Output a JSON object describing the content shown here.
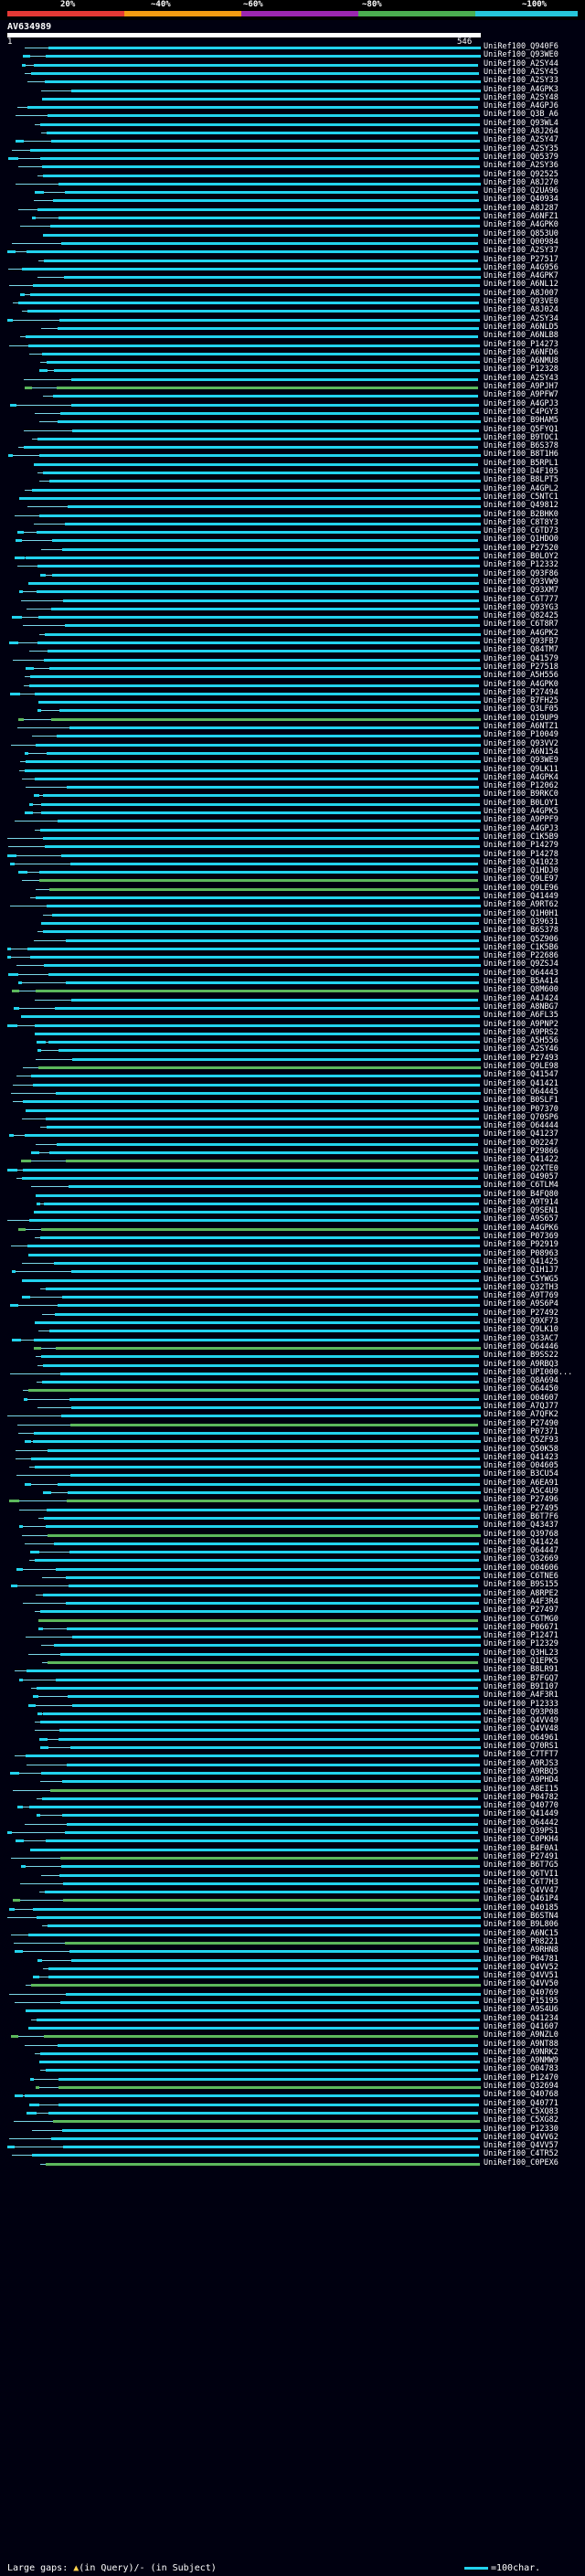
{
  "colors": {
    "background": "#000010",
    "cyan": "#22d3ee",
    "green": "#5cb85c",
    "gap": "#7ad6e8",
    "scale": [
      "#e53935",
      "#f39c12",
      "#9b27b0",
      "#4caf50",
      "#26c6da"
    ]
  },
  "header": {
    "scale_labels": [
      "20%",
      "~40%",
      "~60%",
      "~80%",
      "~100%"
    ],
    "query_id": "AV634989",
    "ruler_start": "1",
    "ruler_end": "546"
  },
  "legend": {
    "text_left_1": "Large gaps: ",
    "text_mark": "▲",
    "text_left_2": "(in Query)/- (in Subject)",
    "text_right": "=100char."
  },
  "hits": [
    "UniRef100_Q940F6",
    "UniRef100_Q93WE0",
    "UniRef100_A2SY44",
    "UniRef100_A2SY45",
    "UniRef100_A2SY33",
    "UniRef100_A4GPK3",
    "UniRef100_A2SY48",
    "UniRef100_A4GPJ6",
    "UniRef100_Q3B_A6",
    "UniRef100_Q93WL4",
    "UniRef100_A8J264",
    "UniRef100_A2SY47",
    "UniRef100_A2SY35",
    "UniRef100_Q05379",
    "UniRef100_A2SY36",
    "UniRef100_Q92525",
    "UniRef100_A8J270",
    "UniRef100_Q2UA96",
    "UniRef100_Q40934",
    "UniRef100_A8J287",
    "UniRef100_A6NFZ1",
    "UniRef100_A4GPK0",
    "UniRef100_Q853U0",
    "UniRef100_Q00984",
    "UniRef100_A2SY37",
    "UniRef100_P27517",
    "UniRef100_A4G956",
    "UniRef100_A4GPK7",
    "UniRef100_A6NL12",
    "UniRef100_A8J007",
    "UniRef100_Q93VE0",
    "UniRef100_A8J024",
    "UniRef100_A2SY34",
    "UniRef100_A6NLD5",
    "UniRef100_A6NLB8",
    "UniRef100_P14273",
    "UniRef100_A6NFD6",
    "UniRef100_A6NMU8",
    "UniRef100_P12328",
    "UniRef100_A2SY43",
    "UniRef100_A9PJH7",
    "UniRef100_A9PFW7",
    "UniRef100_A4GPJ3",
    "UniRef100_C4PGY3",
    "UniRef100_B9HAM5",
    "UniRef100_Q5FYQ1",
    "UniRef100_B9TOC1",
    "UniRef100_B6S378",
    "UniRef100_B8T1H6",
    "UniRef100_B5RPL1",
    "UniRef100_D4F105",
    "UniRef100_B8LPT5",
    "UniRef100_A4GPL2",
    "UniRef100_C5NTC1",
    "UniRef100_Q49812",
    "UniRef100_B2BHK0",
    "UniRef100_C8T8Y3",
    "UniRef100_C6TD73",
    "UniRef100_Q1HDO0",
    "UniRef100_P27520",
    "UniRef100_B0LOY2",
    "UniRef100_P12332",
    "UniRef100_Q93F86",
    "UniRef100_Q93VW9",
    "UniRef100_Q93XM7",
    "UniRef100_C6T777",
    "UniRef100_Q93YG3",
    "UniRef100_Q82425",
    "UniRef100_C6T8R7",
    "UniRef100_A4GPK2",
    "UniRef100_Q93FB7",
    "UniRef100_Q84TM7",
    "UniRef100_Q41579",
    "UniRef100_P27518",
    "UniRef100_A5H556",
    "UniRef100_A4GPK0",
    "UniRef100_P27494",
    "UniRef100_B7FH25",
    "UniRef100_Q3LF05",
    "UniRef100_Q19UP9",
    "UniRef100_A6NTZ1",
    "UniRef100_P10049",
    "UniRef100_Q93VV2",
    "UniRef100_A6N154",
    "UniRef100_Q93WE9",
    "UniRef100_Q9LK11",
    "UniRef100_A4GPK4",
    "UniRef100_P12062",
    "UniRef100_B9RKC0",
    "UniRef100_B0LOY1",
    "UniRef100_A4GPK5",
    "UniRef100_A9PPF9",
    "UniRef100_A4GPJ3",
    "UniRef100_C1K5B9",
    "UniRef100_P14279",
    "UniRef100_P14278",
    "UniRef100_Q41023",
    "UniRef100_Q1HDJ0",
    "UniRef100_Q9LE97",
    "UniRef100_Q9LE96",
    "UniRef100_Q41449",
    "UniRef100_A9RT62",
    "UniRef100_Q1H0H1",
    "UniRef100_Q39631",
    "UniRef100_B6S378",
    "UniRef100_Q5Z906",
    "UniRef100_C1K5B6",
    "UniRef100_P22686",
    "UniRef100_Q9ZSJ4",
    "UniRef100_O64443",
    "UniRef100_B5A414",
    "UniRef100_Q8M600",
    "UniRef100_A4J424",
    "UniRef100_A8NBG7",
    "UniRef100_A6FL35",
    "UniRef100_A9PNP2",
    "UniRef100_A9PRS2",
    "UniRef100_A5H556",
    "UniRef100_A2SY46",
    "UniRef100_P27493",
    "UniRef100_Q9LE98",
    "UniRef100_Q41547",
    "UniRef100_Q41421",
    "UniRef100_O64445",
    "UniRef100_B0SLF1",
    "UniRef100_P07370",
    "UniRef100_Q70SP6",
    "UniRef100_O64444",
    "UniRef100_Q41237",
    "UniRef100_O02247",
    "UniRef100_P29866",
    "UniRef100_Q41422",
    "UniRef100_Q2XTE0",
    "UniRef100_O49057",
    "UniRef100_C6TLM4",
    "UniRef100_B4FQ80",
    "UniRef100_A9T914",
    "UniRef100_Q9SEN1",
    "UniRef100_A9S657",
    "UniRef100_A4GPK6",
    "UniRef100_P07369",
    "UniRef100_P92919",
    "UniRef100_P08963",
    "UniRef100_Q41425",
    "UniRef100_Q1H1J7",
    "UniRef100_C5YWG5",
    "UniRef100_Q32TH3",
    "UniRef100_A9T769",
    "UniRef100_A9S6P4",
    "UniRef100_P27492",
    "UniRef100_Q9XF73",
    "UniRef100_Q9LK10",
    "UniRef100_Q33AC7",
    "UniRef100_O64446",
    "UniRef100_B9SS22",
    "UniRef100_A9RBQ3",
    "UniRef100_UPI000...",
    "UniRef100_Q8A694",
    "UniRef100_O64450",
    "UniRef100_O04607",
    "UniRef100_A7QJ77",
    "UniRef100_A7QFK2",
    "UniRef100_P27490",
    "UniRef100_P07371",
    "UniRef100_Q5ZF93",
    "UniRef100_Q50K58",
    "UniRef100_Q41423",
    "UniRef100_O04605",
    "UniRef100_B3CU54",
    "UniRef100_A6EA91",
    "UniRef100_A5C4U9",
    "UniRef100_P27496",
    "UniRef100_P27495",
    "UniRef100_B6T7F6",
    "UniRef100_Q43437",
    "UniRef100_Q39768",
    "UniRef100_Q41424",
    "UniRef100_O64447",
    "UniRef100_Q32669",
    "UniRef100_O04606",
    "UniRef100_C6TNE6",
    "UniRef100_B9S155",
    "UniRef100_A8RPE2",
    "UniRef100_A4F3R4",
    "UniRef100_P27497",
    "UniRef100_C6TMG0",
    "UniRef100_P06671",
    "UniRef100_P12471",
    "UniRef100_P12329",
    "UniRef100_Q3HL23",
    "UniRef100_Q1EPK5",
    "UniRef100_B8LR91",
    "UniRef100_B7FGQ7",
    "UniRef100_B9I107",
    "UniRef100_A4F3R1",
    "UniRef100_P12333",
    "UniRef100_Q93P08",
    "UniRef100_Q4VV49",
    "UniRef100_Q4VV48",
    "UniRef100_O64961",
    "UniRef100_Q70RS1",
    "UniRef100_C7TFT7",
    "UniRef100_A9RJS3",
    "UniRef100_A9RBQ5",
    "UniRef100_A9PHD4",
    "UniRef100_A8EI15",
    "UniRef100_P04782",
    "UniRef100_Q40770",
    "UniRef100_Q41449",
    "UniRef100_O64442",
    "UniRef100_Q39PS1",
    "UniRef100_C0PKH4",
    "UniRef100_B4F0A1",
    "UniRef100_P27491",
    "UniRef100_B6T7G5",
    "UniRef100_Q6TVI1",
    "UniRef100_C6T7H3",
    "UniRef100_Q4VV47",
    "UniRef100_Q461P4",
    "UniRef100_Q40185",
    "UniRef100_B6STN4",
    "UniRef100_B9L806",
    "UniRef100_A6NC15",
    "UniRef100_P08221",
    "UniRef100_A9RHN8",
    "UniRef100_P04781",
    "UniRef100_Q4VV52",
    "UniRef100_Q4VV51",
    "UniRef100_Q4VV50",
    "UniRef100_Q40769",
    "UniRef100_P15195",
    "UniRef100_A9S4U6",
    "UniRef100_Q41234",
    "UniRef100_Q41607",
    "UniRef100_A9NZL0",
    "UniRef100_A9NT88",
    "UniRef100_A9NRK2",
    "UniRef100_A9NMW9",
    "UniRef100_O04783",
    "UniRef100_P12470",
    "UniRef100_Q32694",
    "UniRef100_Q40768",
    "UniRef100_Q40771",
    "UniRef100_C5XQ83",
    "UniRef100_C5XG82",
    "UniRef100_P12330",
    "UniRef100_Q4VV62",
    "UniRef100_Q4VV57",
    "UniRef100_C4TR52",
    "UniRef100_C0PEX6"
  ]
}
